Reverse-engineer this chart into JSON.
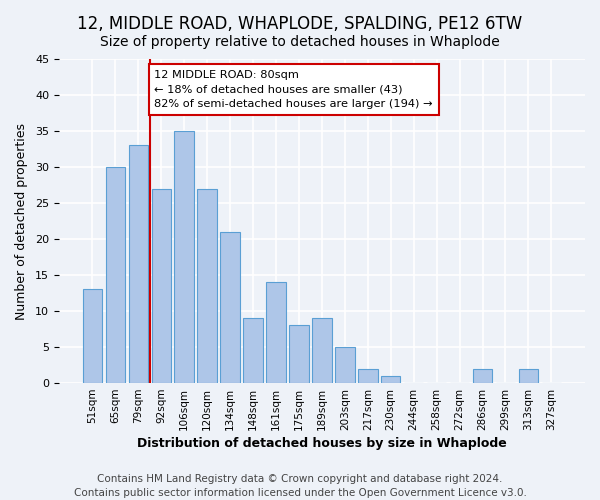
{
  "title": "12, MIDDLE ROAD, WHAPLODE, SPALDING, PE12 6TW",
  "subtitle": "Size of property relative to detached houses in Whaplode",
  "xlabel": "Distribution of detached houses by size in Whaplode",
  "ylabel": "Number of detached properties",
  "bar_labels": [
    "51sqm",
    "65sqm",
    "79sqm",
    "92sqm",
    "106sqm",
    "120sqm",
    "134sqm",
    "148sqm",
    "161sqm",
    "175sqm",
    "189sqm",
    "203sqm",
    "217sqm",
    "230sqm",
    "244sqm",
    "258sqm",
    "272sqm",
    "286sqm",
    "299sqm",
    "313sqm",
    "327sqm"
  ],
  "bar_values": [
    13,
    30,
    33,
    27,
    35,
    27,
    21,
    9,
    14,
    8,
    9,
    5,
    2,
    1,
    0,
    0,
    0,
    2,
    0,
    2,
    0
  ],
  "bar_color": "#aec6e8",
  "bar_edge_color": "#5a9fd4",
  "ylim": [
    0,
    45
  ],
  "yticks": [
    0,
    5,
    10,
    15,
    20,
    25,
    30,
    35,
    40,
    45
  ],
  "vline_x": 2.5,
  "vline_color": "#cc0000",
  "annotation_box_title": "12 MIDDLE ROAD: 80sqm",
  "annotation_line1": "← 18% of detached houses are smaller (43)",
  "annotation_line2": "82% of semi-detached houses are larger (194) →",
  "annotation_box_edge_color": "#cc0000",
  "footer_line1": "Contains HM Land Registry data © Crown copyright and database right 2024.",
  "footer_line2": "Contains public sector information licensed under the Open Government Licence v3.0.",
  "background_color": "#eef2f8",
  "plot_bg_color": "#eef2f8",
  "grid_color": "#ffffff",
  "title_fontsize": 12,
  "subtitle_fontsize": 10,
  "footer_fontsize": 7.5
}
